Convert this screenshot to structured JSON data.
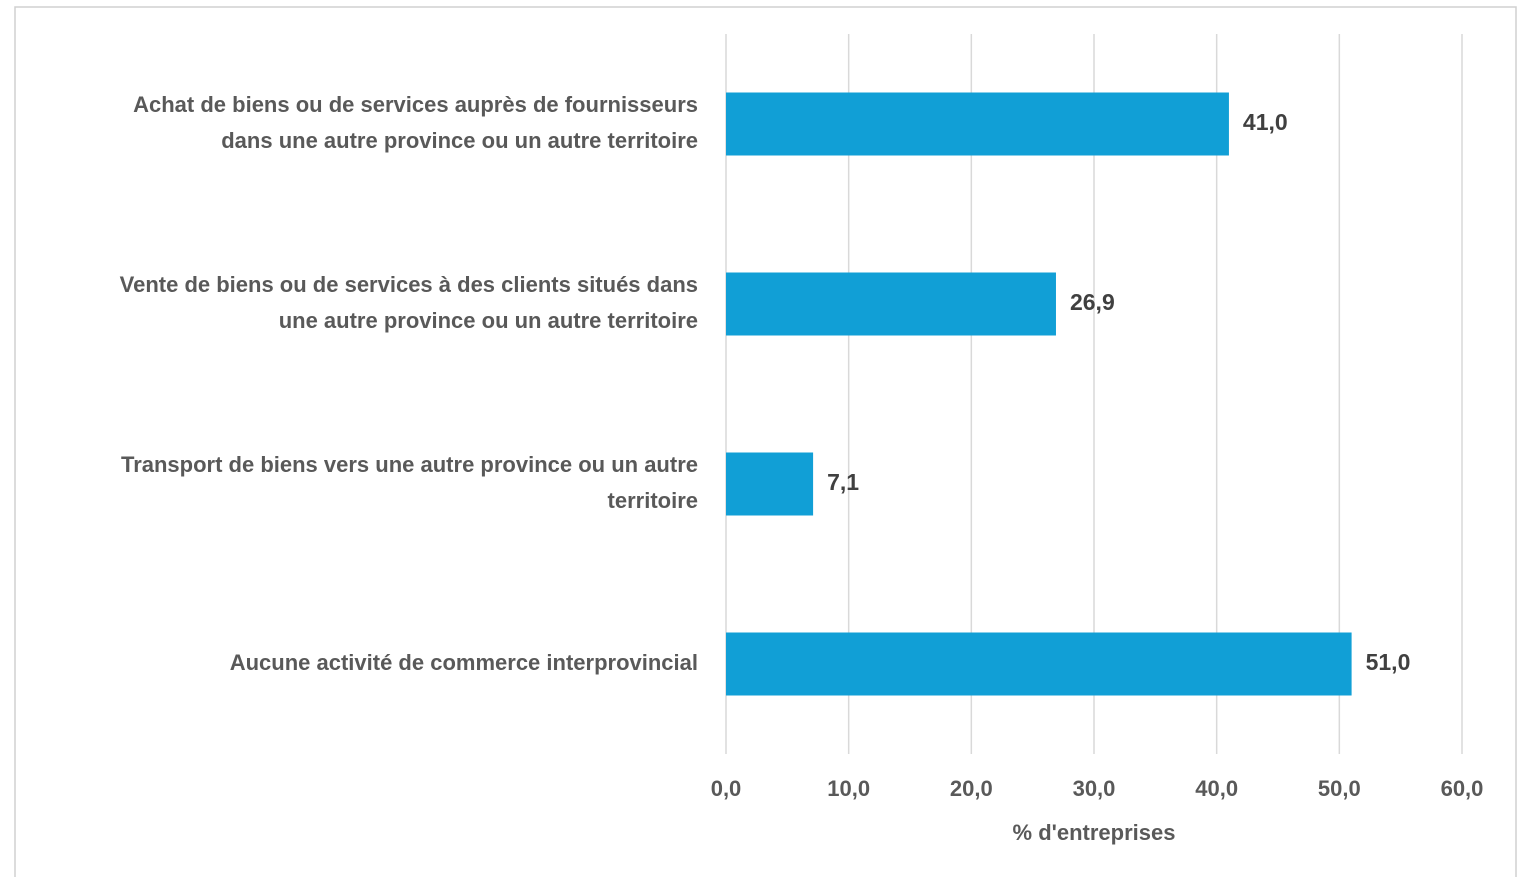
{
  "chart_data": {
    "type": "bar",
    "orientation": "horizontal",
    "categories": [
      [
        "Achat de biens ou de services auprès de fournisseurs",
        "dans une autre province ou un autre territoire"
      ],
      [
        "Vente de biens ou de services à des clients situés dans",
        "une autre province ou un autre territoire"
      ],
      [
        "Transport de biens vers une autre province ou un autre",
        "territoire"
      ],
      [
        "Aucune activité de commerce interprovincial"
      ]
    ],
    "values": [
      41.0,
      26.9,
      7.1,
      51.0
    ],
    "value_labels": [
      "41,0",
      "26,9",
      "7,1",
      "51,0"
    ],
    "color": "#119fd6",
    "xlabel": "% d'entreprises",
    "xlim": [
      0,
      60
    ],
    "xticks": [
      {
        "value": 0,
        "label": "0,0"
      },
      {
        "value": 10,
        "label": "10,0"
      },
      {
        "value": 20,
        "label": "20,0"
      },
      {
        "value": 30,
        "label": "30,0"
      },
      {
        "value": 40,
        "label": "40,0"
      },
      {
        "value": 50,
        "label": "50,0"
      },
      {
        "value": 60,
        "label": "60,0"
      }
    ],
    "grid": true
  }
}
